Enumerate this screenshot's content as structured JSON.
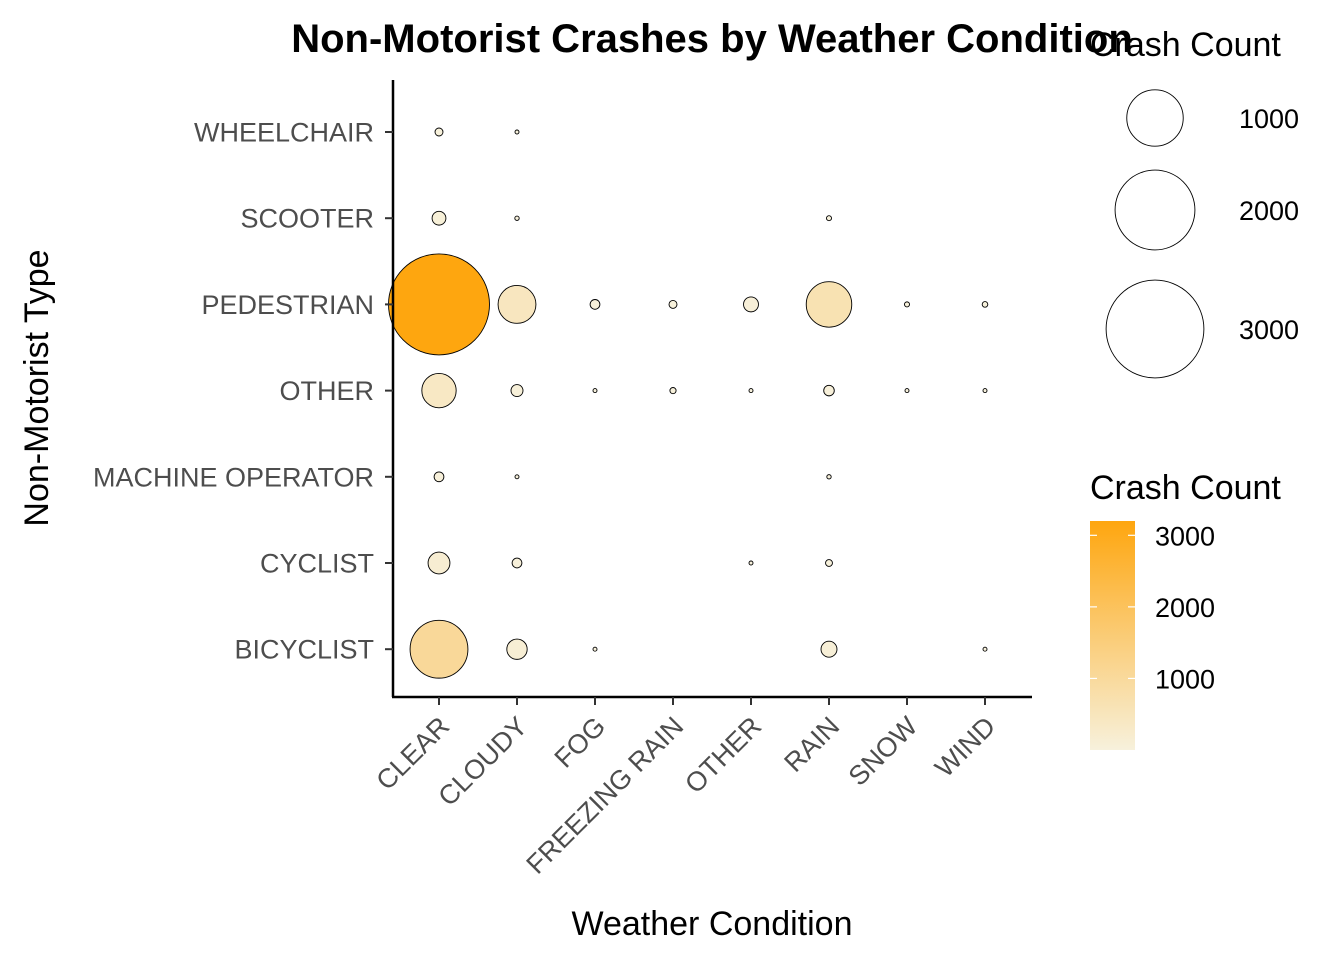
{
  "chart_data": {
    "type": "scatter",
    "subtype": "bubble",
    "title": "Non-Motorist Crashes by Weather Condition",
    "xlabel": "Weather Condition",
    "ylabel": "Non-Motorist Type",
    "x_categories": [
      "CLEAR",
      "CLOUDY",
      "FOG",
      "FREEZING RAIN",
      "OTHER",
      "RAIN",
      "SNOW",
      "WIND"
    ],
    "y_categories": [
      "BICYCLIST",
      "CYCLIST",
      "MACHINE OPERATOR",
      "OTHER",
      "PEDESTRIAN",
      "SCOOTER",
      "WHEELCHAIR"
    ],
    "points": [
      {
        "x": "CLEAR",
        "y": "WHEELCHAIR",
        "count": 20
      },
      {
        "x": "CLOUDY",
        "y": "WHEELCHAIR",
        "count": 5
      },
      {
        "x": "CLEAR",
        "y": "SCOOTER",
        "count": 60
      },
      {
        "x": "CLOUDY",
        "y": "SCOOTER",
        "count": 6
      },
      {
        "x": "RAIN",
        "y": "SCOOTER",
        "count": 8
      },
      {
        "x": "CLEAR",
        "y": "PEDESTRIAN",
        "count": 3200
      },
      {
        "x": "CLOUDY",
        "y": "PEDESTRIAN",
        "count": 450
      },
      {
        "x": "FOG",
        "y": "PEDESTRIAN",
        "count": 30
      },
      {
        "x": "FREEZING RAIN",
        "y": "PEDESTRIAN",
        "count": 20
      },
      {
        "x": "OTHER",
        "y": "PEDESTRIAN",
        "count": 70
      },
      {
        "x": "RAIN",
        "y": "PEDESTRIAN",
        "count": 650
      },
      {
        "x": "SNOW",
        "y": "PEDESTRIAN",
        "count": 8
      },
      {
        "x": "WIND",
        "y": "PEDESTRIAN",
        "count": 10
      },
      {
        "x": "CLEAR",
        "y": "OTHER",
        "count": 370
      },
      {
        "x": "CLOUDY",
        "y": "OTHER",
        "count": 45
      },
      {
        "x": "FOG",
        "y": "OTHER",
        "count": 3
      },
      {
        "x": "FREEZING RAIN",
        "y": "OTHER",
        "count": 12
      },
      {
        "x": "OTHER",
        "y": "OTHER",
        "count": 3
      },
      {
        "x": "RAIN",
        "y": "OTHER",
        "count": 35
      },
      {
        "x": "SNOW",
        "y": "OTHER",
        "count": 3
      },
      {
        "x": "WIND",
        "y": "OTHER",
        "count": 3
      },
      {
        "x": "CLEAR",
        "y": "MACHINE OPERATOR",
        "count": 30
      },
      {
        "x": "CLOUDY",
        "y": "MACHINE OPERATOR",
        "count": 5
      },
      {
        "x": "RAIN",
        "y": "MACHINE OPERATOR",
        "count": 6
      },
      {
        "x": "CLEAR",
        "y": "CYCLIST",
        "count": 150
      },
      {
        "x": "CLOUDY",
        "y": "CYCLIST",
        "count": 30
      },
      {
        "x": "OTHER",
        "y": "CYCLIST",
        "count": 3
      },
      {
        "x": "RAIN",
        "y": "CYCLIST",
        "count": 15
      },
      {
        "x": "CLEAR",
        "y": "BICYCLIST",
        "count": 1050
      },
      {
        "x": "CLOUDY",
        "y": "BICYCLIST",
        "count": 130
      },
      {
        "x": "FOG",
        "y": "BICYCLIST",
        "count": 4
      },
      {
        "x": "RAIN",
        "y": "BICYCLIST",
        "count": 80
      },
      {
        "x": "WIND",
        "y": "BICYCLIST",
        "count": 4
      }
    ],
    "size_legend": {
      "title": "Crash Count",
      "values": [
        1000,
        2000,
        3000
      ],
      "labels": [
        "1000",
        "2000",
        "3000"
      ]
    },
    "color_legend": {
      "title": "Crash Count",
      "range": [
        0,
        3200
      ],
      "ticks": [
        1000,
        2000,
        3000
      ],
      "tick_labels": [
        "1000",
        "2000",
        "3000"
      ],
      "low_color": "#f7f1dc",
      "high_color": "#fea60f"
    },
    "grid": false,
    "legend_position": "right"
  }
}
